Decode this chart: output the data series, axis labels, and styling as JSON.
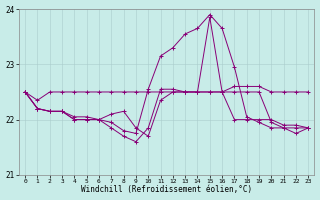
{
  "xlabel": "Windchill (Refroidissement éolien,°C)",
  "ylabel": "",
  "xlim": [
    -0.5,
    23.5
  ],
  "ylim": [
    21,
    24
  ],
  "yticks": [
    21,
    22,
    23,
    24
  ],
  "xticks": [
    0,
    1,
    2,
    3,
    4,
    5,
    6,
    7,
    8,
    9,
    10,
    11,
    12,
    13,
    14,
    15,
    16,
    17,
    18,
    19,
    20,
    21,
    22,
    23
  ],
  "bg_color": "#c8ece8",
  "line_color": "#880077",
  "grid_color": "#aacccc",
  "series": [
    [
      22.5,
      22.35,
      22.5,
      22.5,
      22.5,
      22.5,
      22.5,
      22.5,
      22.5,
      22.5,
      22.5,
      22.5,
      22.5,
      22.5,
      22.5,
      22.5,
      22.5,
      22.6,
      22.6,
      22.6,
      22.5,
      22.5,
      22.5,
      22.5
    ],
    [
      22.5,
      22.2,
      22.15,
      22.15,
      22.05,
      22.05,
      22.0,
      21.95,
      21.8,
      21.75,
      22.55,
      23.15,
      23.3,
      23.55,
      23.65,
      23.9,
      23.65,
      22.95,
      22.05,
      21.95,
      21.85,
      21.85,
      21.75,
      21.85
    ],
    [
      22.5,
      22.2,
      22.15,
      22.15,
      22.0,
      22.0,
      22.0,
      22.1,
      22.15,
      21.85,
      21.7,
      22.35,
      22.5,
      22.5,
      22.5,
      23.85,
      22.5,
      22.0,
      22.0,
      22.0,
      22.0,
      21.9,
      21.9,
      21.85
    ],
    [
      22.5,
      22.2,
      22.15,
      22.15,
      22.0,
      22.0,
      22.0,
      21.85,
      21.7,
      21.6,
      21.85,
      22.55,
      22.55,
      22.5,
      22.5,
      22.5,
      22.5,
      22.5,
      22.5,
      22.5,
      21.95,
      21.85,
      21.85,
      21.85
    ]
  ]
}
